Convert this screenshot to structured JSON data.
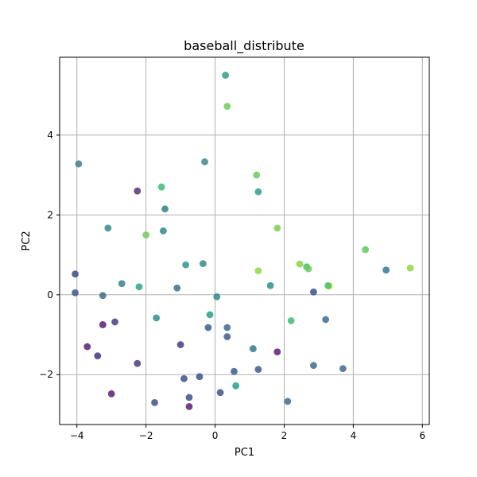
{
  "chart_data": {
    "type": "scatter",
    "title": "baseball_distribute",
    "xlabel": "PC1",
    "ylabel": "PC2",
    "xlim": [
      -4.5,
      6.2
    ],
    "ylim": [
      -3.25,
      5.95
    ],
    "xticks": [
      -4,
      -2,
      0,
      2,
      4,
      6
    ],
    "yticks": [
      -2,
      0,
      2,
      4
    ],
    "grid": true,
    "colors": {
      "axes": "#000000",
      "grid": "#b0b0b0",
      "point_palette": [
        "#440154",
        "#3b528b",
        "#21918c",
        "#2eb37c",
        "#5ec962",
        "#a0da39"
      ]
    },
    "points": [
      {
        "x": 0.3,
        "y": 5.5,
        "color": "#2a9d87"
      },
      {
        "x": 0.35,
        "y": 4.72,
        "color": "#6ccd5a"
      },
      {
        "x": -3.95,
        "y": 3.28,
        "color": "#3f7c8e"
      },
      {
        "x": -0.3,
        "y": 3.33,
        "color": "#3a8a8c"
      },
      {
        "x": 1.2,
        "y": 3.0,
        "color": "#6ccd5a"
      },
      {
        "x": 1.25,
        "y": 2.58,
        "color": "#30a08a"
      },
      {
        "x": -2.25,
        "y": 2.6,
        "color": "#5b2f72"
      },
      {
        "x": -1.55,
        "y": 2.7,
        "color": "#3dbc74"
      },
      {
        "x": -1.45,
        "y": 2.15,
        "color": "#2e7f8e"
      },
      {
        "x": -3.1,
        "y": 1.67,
        "color": "#338a8c"
      },
      {
        "x": -2.0,
        "y": 1.5,
        "color": "#6ccd5a"
      },
      {
        "x": -1.5,
        "y": 1.6,
        "color": "#2f878c"
      },
      {
        "x": 1.8,
        "y": 1.67,
        "color": "#7ad151"
      },
      {
        "x": 4.35,
        "y": 1.13,
        "color": "#5ec962"
      },
      {
        "x": -0.85,
        "y": 0.75,
        "color": "#2f968a"
      },
      {
        "x": -0.35,
        "y": 0.78,
        "color": "#358c8c"
      },
      {
        "x": 1.25,
        "y": 0.6,
        "color": "#8fd744"
      },
      {
        "x": 2.45,
        "y": 0.77,
        "color": "#86d549"
      },
      {
        "x": 2.65,
        "y": 0.7,
        "color": "#4ac16d"
      },
      {
        "x": 2.7,
        "y": 0.65,
        "color": "#6ccd5a"
      },
      {
        "x": 4.95,
        "y": 0.62,
        "color": "#2f7a8e"
      },
      {
        "x": 5.65,
        "y": 0.67,
        "color": "#8fd744"
      },
      {
        "x": -4.05,
        "y": 0.52,
        "color": "#3f4a8a"
      },
      {
        "x": -2.7,
        "y": 0.28,
        "color": "#35838d"
      },
      {
        "x": -2.2,
        "y": 0.2,
        "color": "#2aa686"
      },
      {
        "x": -1.1,
        "y": 0.17,
        "color": "#3b6f8e"
      },
      {
        "x": 1.6,
        "y": 0.23,
        "color": "#2e8f8c"
      },
      {
        "x": 3.3,
        "y": 0.22,
        "color": "#b8de29"
      },
      {
        "x": 3.27,
        "y": 0.23,
        "color": "#4ac16d"
      },
      {
        "x": -4.05,
        "y": 0.05,
        "color": "#3b5a8c"
      },
      {
        "x": -3.25,
        "y": -0.02,
        "color": "#3f6a8e"
      },
      {
        "x": 0.05,
        "y": -0.05,
        "color": "#2f878c"
      },
      {
        "x": 2.85,
        "y": 0.07,
        "color": "#3b528b"
      },
      {
        "x": -0.15,
        "y": -0.5,
        "color": "#25a18a"
      },
      {
        "x": -3.25,
        "y": -0.75,
        "color": "#5b1f72"
      },
      {
        "x": -2.9,
        "y": -0.68,
        "color": "#46407f"
      },
      {
        "x": -1.7,
        "y": -0.58,
        "color": "#2f908c"
      },
      {
        "x": 2.2,
        "y": -0.65,
        "color": "#3dbc74"
      },
      {
        "x": 3.2,
        "y": -0.62,
        "color": "#3f6a8e"
      },
      {
        "x": -0.2,
        "y": -0.82,
        "color": "#3b5e8c"
      },
      {
        "x": 0.35,
        "y": -0.82,
        "color": "#3f6a8e"
      },
      {
        "x": 0.35,
        "y": -1.05,
        "color": "#3b5e8c"
      },
      {
        "x": -3.7,
        "y": -1.3,
        "color": "#5b1f72"
      },
      {
        "x": -1.0,
        "y": -1.25,
        "color": "#46407f"
      },
      {
        "x": 1.1,
        "y": -1.35,
        "color": "#2f7a8e"
      },
      {
        "x": 1.8,
        "y": -1.43,
        "color": "#5b1f72"
      },
      {
        "x": -3.4,
        "y": -1.53,
        "color": "#46307c"
      },
      {
        "x": -2.25,
        "y": -1.72,
        "color": "#4a3a7c"
      },
      {
        "x": 2.85,
        "y": -1.77,
        "color": "#3f6a8e"
      },
      {
        "x": 3.7,
        "y": -1.85,
        "color": "#3f6a8e"
      },
      {
        "x": 1.25,
        "y": -1.87,
        "color": "#3b5e8c"
      },
      {
        "x": 0.55,
        "y": -1.92,
        "color": "#3b5e8c"
      },
      {
        "x": -0.9,
        "y": -2.1,
        "color": "#3b528b"
      },
      {
        "x": -0.45,
        "y": -2.05,
        "color": "#3b528b"
      },
      {
        "x": 0.6,
        "y": -2.28,
        "color": "#25a18a"
      },
      {
        "x": -3.0,
        "y": -2.48,
        "color": "#5b1f72"
      },
      {
        "x": 0.15,
        "y": -2.45,
        "color": "#3b528b"
      },
      {
        "x": -0.75,
        "y": -2.57,
        "color": "#3b528b"
      },
      {
        "x": -1.75,
        "y": -2.7,
        "color": "#3b528b"
      },
      {
        "x": 2.1,
        "y": -2.67,
        "color": "#3f6a8e"
      },
      {
        "x": -0.75,
        "y": -2.8,
        "color": "#5b1f72"
      }
    ]
  }
}
